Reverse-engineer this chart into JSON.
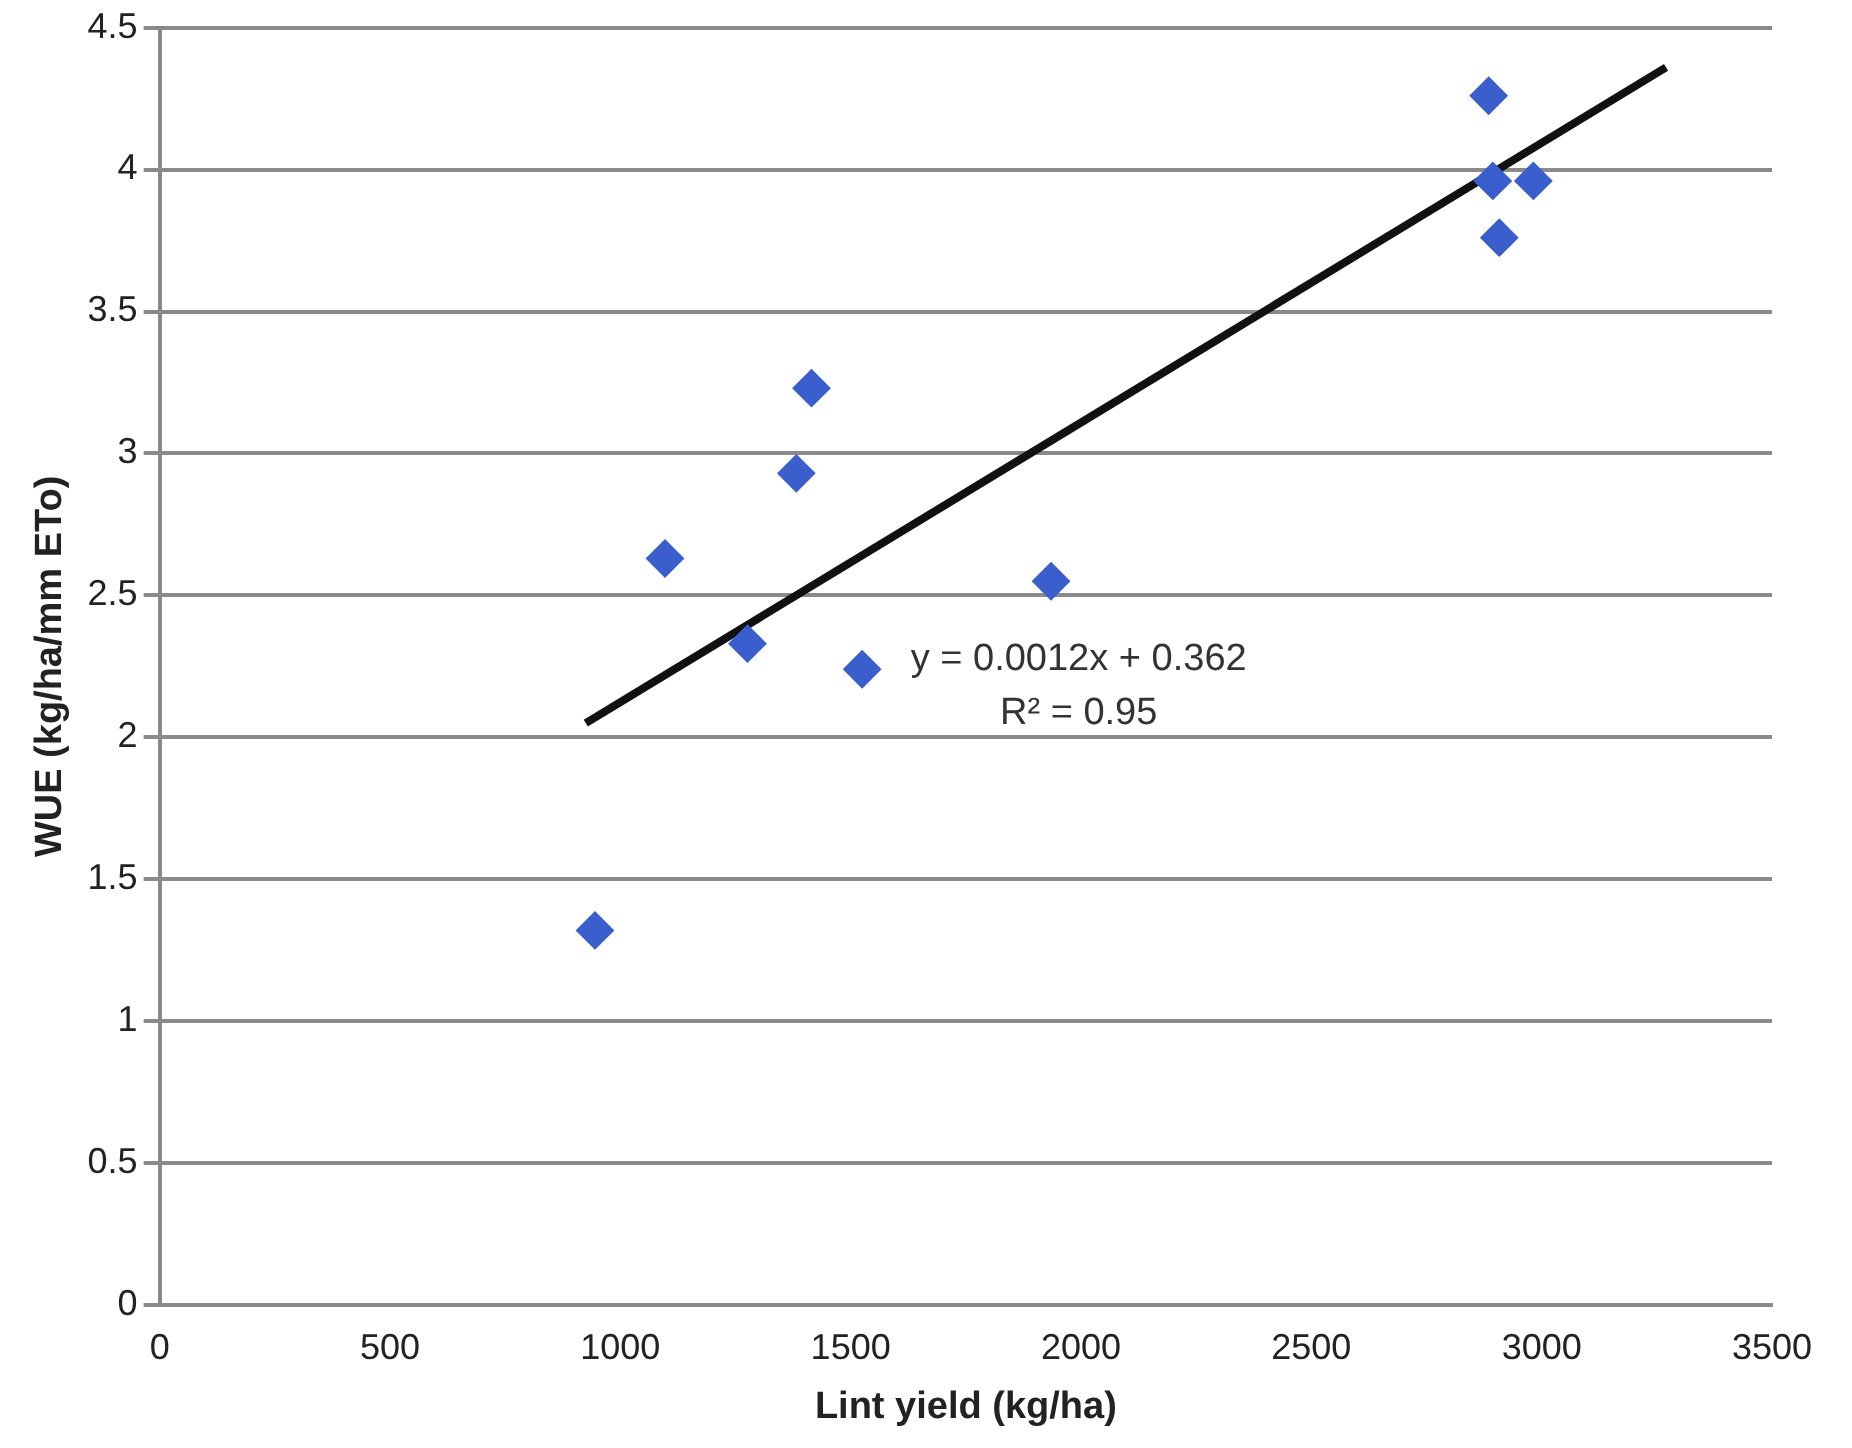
{
  "chart_data": {
    "type": "scatter",
    "xlabel": "Lint yield (kg/ha)",
    "ylabel": "WUE (kg/ha/mm ETo)",
    "xlim": [
      0,
      3500
    ],
    "xticks": [
      0,
      500,
      1000,
      1500,
      2000,
      2500,
      3000,
      3500
    ],
    "ylim": [
      0,
      4.5
    ],
    "yticks": [
      0,
      0.5,
      1,
      1.5,
      2,
      2.5,
      3,
      3.5,
      4,
      4.5
    ],
    "grid": "y",
    "legend": false,
    "marker": "diamond",
    "series": [
      {
        "type": "scatter",
        "color": "#3a5fcd",
        "x": [
          945,
          1097,
          1276,
          1382,
          1415,
          1525,
          1935,
          2885,
          2894,
          2908,
          2982
        ],
        "values": [
          1.32,
          2.63,
          2.33,
          2.93,
          3.23,
          2.24,
          2.55,
          4.26,
          3.96,
          3.76,
          3.96
        ]
      },
      {
        "type": "line",
        "color": "#111111",
        "marker": "none",
        "x": [
          925,
          3270
        ],
        "values": [
          2.05,
          4.36
        ]
      }
    ],
    "annotations": [
      "y = 0.0012x + 0.362",
      "R² = 0.95"
    ]
  }
}
